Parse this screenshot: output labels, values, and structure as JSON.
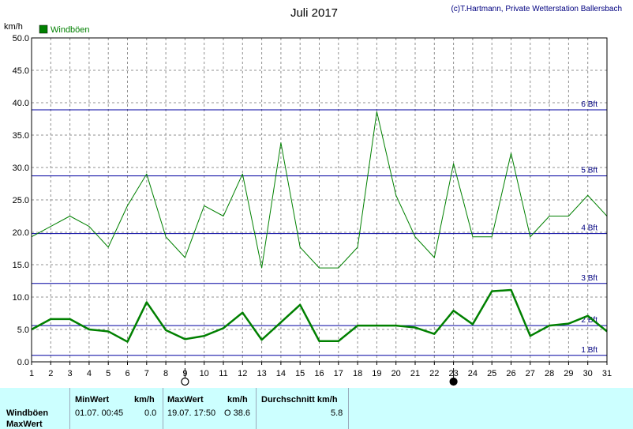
{
  "chart_data": {
    "type": "line",
    "title": "Juli 2017",
    "credit": "(c)T.Hartmann, Private Wetterstation Ballersbach",
    "ylabel": "km/h",
    "ylim": [
      0,
      50
    ],
    "yticks": [
      "0.0",
      "5.0",
      "10.0",
      "15.0",
      "20.0",
      "25.0",
      "30.0",
      "35.0",
      "40.0",
      "45.0",
      "50.0"
    ],
    "x": [
      1,
      2,
      3,
      4,
      5,
      6,
      7,
      8,
      9,
      10,
      11,
      12,
      13,
      14,
      15,
      16,
      17,
      18,
      19,
      20,
      21,
      22,
      23,
      24,
      25,
      26,
      27,
      28,
      29,
      30,
      31
    ],
    "grid": true,
    "legend_position": "top-left",
    "series": [
      {
        "name": "Windböen",
        "color": "#008000",
        "role": "max",
        "values": [
          19.3,
          20.9,
          22.5,
          20.9,
          17.7,
          24.1,
          29.0,
          19.3,
          16.1,
          24.1,
          22.5,
          29.0,
          14.5,
          33.8,
          17.7,
          14.5,
          14.5,
          17.7,
          38.6,
          25.7,
          19.3,
          16.1,
          30.6,
          19.3,
          19.3,
          32.2,
          19.3,
          22.5,
          22.5,
          25.7,
          22.5
        ]
      },
      {
        "name": "Windböen",
        "color": "#008000",
        "role": "mean",
        "values": [
          5.0,
          6.6,
          6.6,
          5.0,
          4.7,
          3.1,
          9.2,
          4.9,
          3.5,
          4.0,
          5.2,
          7.6,
          3.4,
          6.1,
          8.8,
          3.2,
          3.2,
          5.6,
          5.6,
          5.6,
          5.3,
          4.3,
          7.9,
          5.8,
          10.9,
          11.1,
          4.0,
          5.6,
          5.9,
          7.1,
          4.7
        ]
      }
    ],
    "beaufort_lines": [
      {
        "label": "1 Bft",
        "value": 1.0
      },
      {
        "label": "2 Bft",
        "value": 5.6
      },
      {
        "label": "3 Bft",
        "value": 12.1
      },
      {
        "label": "4 Bft",
        "value": 19.8
      },
      {
        "label": "5 Bft",
        "value": 28.7
      },
      {
        "label": "6 Bft",
        "value": 38.9
      }
    ],
    "moon_phases": [
      {
        "day": 9,
        "phase": "full"
      },
      {
        "day": 23,
        "phase": "new"
      }
    ]
  },
  "stats_table": {
    "row_label_1": "Windböen",
    "row_label_2": "MaxWert",
    "min_header": "MinWert",
    "min_unit": "km/h",
    "min_datetime": "01.07.  00:45",
    "min_value": "0.0",
    "max_header": "MaxWert",
    "max_unit": "km/h",
    "max_datetime": "19.07.  17:50",
    "max_value": "O 38.6",
    "avg_header": "Durchschnitt km/h",
    "avg_value": "5.8"
  }
}
